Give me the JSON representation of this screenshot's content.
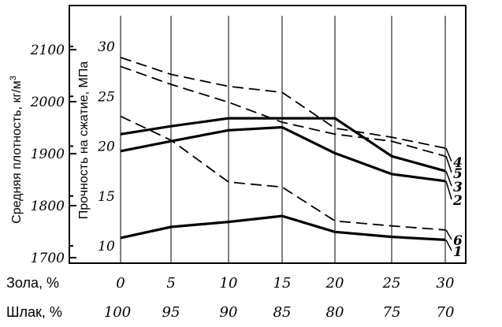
{
  "chart_data": {
    "type": "line",
    "axes": {
      "left_outer": {
        "label": "Средняя плотность, кг/м",
        "label_superscript": "3",
        "ticks": [
          "2100",
          "2000",
          "1900",
          "1800",
          "1700"
        ],
        "range": [
          1700,
          2130
        ]
      },
      "left_inner": {
        "label": "Прочность на сжатие, МПа",
        "ticks": [
          "30",
          "25",
          "20",
          "15",
          "10"
        ],
        "range": [
          10,
          30
        ]
      },
      "x": {
        "rows": [
          {
            "label": "Зола, %",
            "values": [
              "0",
              "5",
              "10",
              "15",
              "20",
              "25",
              "30"
            ]
          },
          {
            "label": "Шлак, %",
            "values": [
              "100",
              "95",
              "90",
              "85",
              "80",
              "75",
              "70"
            ]
          }
        ],
        "x_values": [
          0,
          5,
          10,
          15,
          20,
          25,
          30
        ]
      }
    },
    "grid": true,
    "series": [
      {
        "name": "1",
        "style": "solid",
        "points": [
          [
            0,
            10.8
          ],
          [
            5,
            11.9
          ],
          [
            10,
            12.4
          ],
          [
            15,
            13.0
          ],
          [
            20,
            11.4
          ],
          [
            25,
            10.9
          ],
          [
            30,
            10.6
          ]
        ]
      },
      {
        "name": "2",
        "style": "solid",
        "points": [
          [
            0,
            19.5
          ],
          [
            5,
            20.5
          ],
          [
            10,
            21.6
          ],
          [
            15,
            21.9
          ],
          [
            20,
            19.3
          ],
          [
            25,
            17.2
          ],
          [
            30,
            16.5
          ]
        ]
      },
      {
        "name": "3",
        "style": "solid",
        "points": [
          [
            0,
            21.2
          ],
          [
            5,
            22.0
          ],
          [
            10,
            22.8
          ],
          [
            15,
            22.8
          ],
          [
            20,
            22.8
          ],
          [
            25,
            19.0
          ],
          [
            30,
            17.5
          ]
        ]
      },
      {
        "name": "4",
        "style": "dashed",
        "points": [
          [
            0,
            28.9
          ],
          [
            5,
            27.2
          ],
          [
            10,
            26.0
          ],
          [
            15,
            25.4
          ],
          [
            20,
            21.8
          ],
          [
            25,
            20.9
          ],
          [
            30,
            19.8
          ]
        ]
      },
      {
        "name": "5",
        "style": "dashed",
        "points": [
          [
            0,
            28.0
          ],
          [
            5,
            26.2
          ],
          [
            10,
            24.4
          ],
          [
            15,
            22.4
          ],
          [
            20,
            21.2
          ],
          [
            25,
            20.5
          ],
          [
            30,
            19.0
          ]
        ]
      },
      {
        "name": "6",
        "style": "dashed",
        "points": [
          [
            0,
            23.0
          ],
          [
            5,
            20.6
          ],
          [
            10,
            16.4
          ],
          [
            15,
            15.9
          ],
          [
            20,
            12.5
          ],
          [
            25,
            12.0
          ],
          [
            30,
            11.6
          ]
        ]
      }
    ]
  }
}
